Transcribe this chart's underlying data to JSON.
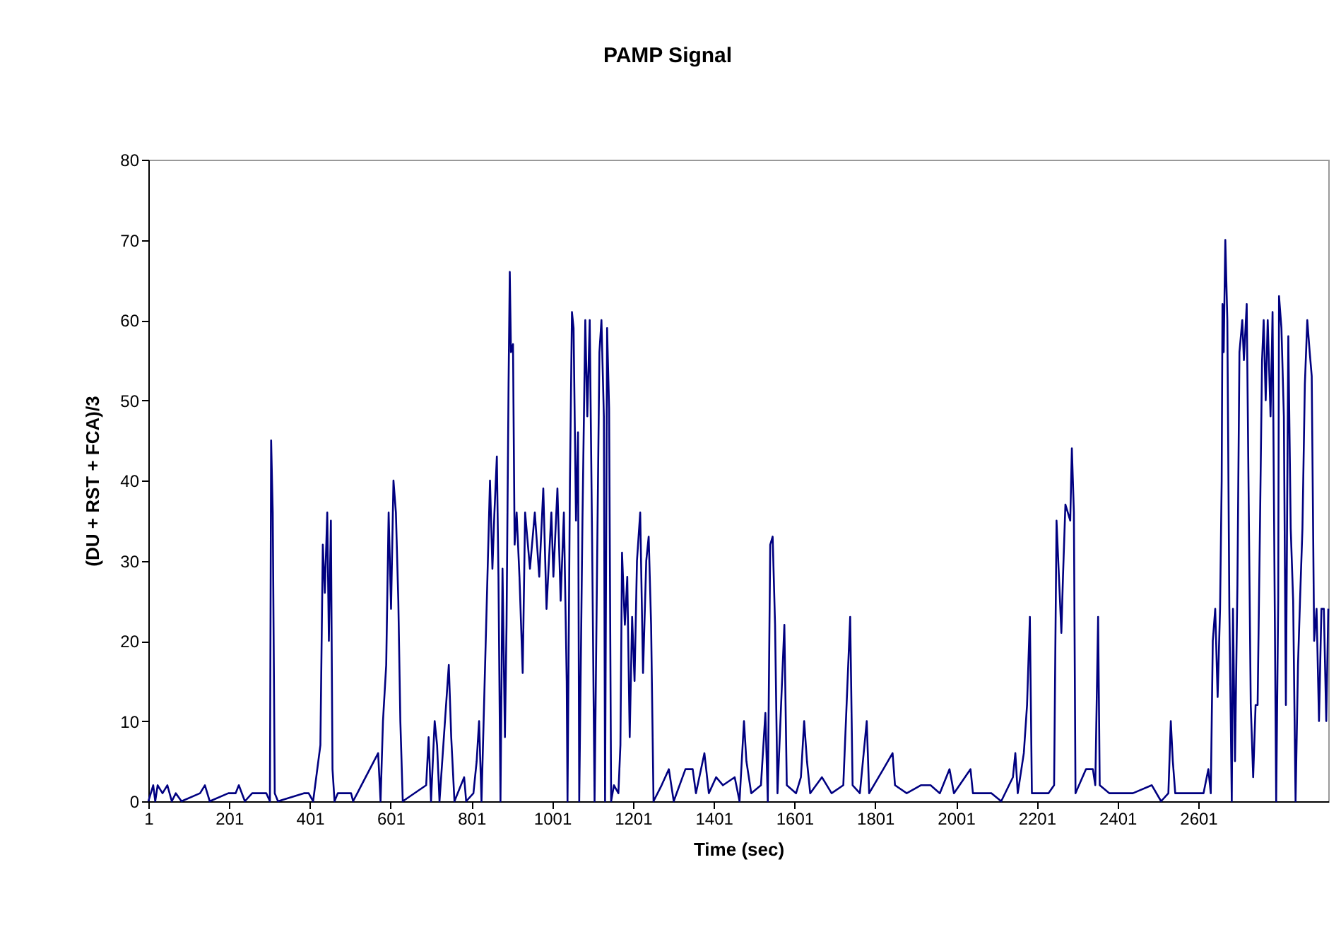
{
  "chart_data": {
    "type": "line",
    "title": "PAMP Signal",
    "xlabel": "Time (sec)",
    "ylabel": "(DU + RST + FCA)/3",
    "color": "#000080",
    "x": [
      1,
      13,
      18,
      24,
      36,
      48,
      59,
      69,
      83,
      129,
      141,
      153,
      199,
      217,
      225,
      240,
      258,
      293,
      302,
      305,
      309,
      314,
      322,
      386,
      398,
      409,
      427,
      433,
      438,
      444,
      448,
      453,
      457,
      462,
      470,
      503,
      508,
      570,
      576,
      582,
      590,
      596,
      602,
      608,
      614,
      620,
      625,
      631,
      689,
      695,
      701,
      710,
      716,
      722,
      745,
      751,
      759,
      783,
      788,
      806,
      814,
      820,
      826,
      847,
      853,
      858,
      864,
      868,
      873,
      878,
      884,
      888,
      893,
      896,
      899,
      904,
      908,
      913,
      920,
      928,
      934,
      946,
      958,
      969,
      979,
      987,
      999,
      1004,
      1014,
      1022,
      1030,
      1037,
      1039,
      1045,
      1050,
      1054,
      1060,
      1065,
      1068,
      1076,
      1083,
      1088,
      1094,
      1100,
      1106,
      1113,
      1118,
      1123,
      1129,
      1132,
      1137,
      1142,
      1147,
      1154,
      1165,
      1170,
      1174,
      1181,
      1187,
      1193,
      1199,
      1205,
      1211,
      1219,
      1226,
      1234,
      1240,
      1246,
      1252,
      1272,
      1290,
      1302,
      1331,
      1349,
      1357,
      1378,
      1389,
      1407,
      1424,
      1453,
      1465,
      1476,
      1482,
      1494,
      1518,
      1529,
      1535,
      1541,
      1547,
      1553,
      1559,
      1576,
      1582,
      1605,
      1617,
      1625,
      1632,
      1640,
      1669,
      1693,
      1722,
      1739,
      1745,
      1763,
      1780,
      1786,
      1821,
      1844,
      1850,
      1879,
      1914,
      1938,
      1961,
      1985,
      1996,
      2037,
      2043,
      2089,
      2113,
      2142,
      2148,
      2154,
      2169,
      2177,
      2184,
      2189,
      2206,
      2230,
      2244,
      2250,
      2256,
      2262,
      2266,
      2272,
      2278,
      2284,
      2288,
      2293,
      2297,
      2323,
      2340,
      2346,
      2353,
      2357,
      2381,
      2439,
      2486,
      2509,
      2527,
      2533,
      2538,
      2544,
      2567,
      2614,
      2626,
      2632,
      2637,
      2643,
      2649,
      2655,
      2659,
      2661,
      2664,
      2668,
      2673,
      2678,
      2684,
      2687,
      2692,
      2698,
      2703,
      2710,
      2714,
      2721,
      2726,
      2731,
      2737,
      2743,
      2748,
      2754,
      2759,
      2763,
      2768,
      2773,
      2780,
      2785,
      2790,
      2794,
      2799,
      2801,
      2807,
      2813,
      2818,
      2824,
      2830,
      2836,
      2842,
      2848,
      2853,
      2859,
      2865,
      2871,
      2877,
      2882,
      2888,
      2894,
      2900,
      2906,
      2912,
      2918,
      2923
    ],
    "values": [
      0,
      2,
      0,
      2,
      1,
      2,
      0,
      1,
      0,
      1,
      2,
      0,
      1,
      1,
      2,
      0,
      1,
      1,
      0,
      45,
      36,
      1,
      0,
      1,
      1,
      0,
      7,
      32,
      26,
      36,
      20,
      35,
      4,
      0,
      1,
      1,
      0,
      6,
      0,
      10,
      17,
      36,
      24,
      40,
      36,
      25,
      10,
      0,
      2,
      8,
      0,
      10,
      7,
      0,
      17,
      8,
      0,
      3,
      0,
      1,
      5,
      10,
      0,
      40,
      29,
      36,
      43,
      28,
      0,
      29,
      8,
      22,
      52,
      66,
      56,
      57,
      32,
      36,
      28,
      16,
      36,
      29,
      36,
      28,
      39,
      24,
      36,
      28,
      39,
      25,
      36,
      15,
      0,
      40,
      61,
      59,
      35,
      46,
      0,
      35,
      60,
      48,
      60,
      32,
      0,
      33,
      56,
      60,
      48,
      0,
      59,
      49,
      0,
      2,
      1,
      7,
      31,
      22,
      28,
      8,
      23,
      15,
      30,
      36,
      16,
      30,
      33,
      22,
      0,
      2,
      4,
      0,
      4,
      4,
      1,
      6,
      1,
      3,
      2,
      3,
      0,
      10,
      5,
      1,
      2,
      11,
      0,
      32,
      33,
      22,
      1,
      22,
      2,
      1,
      3,
      10,
      5,
      1,
      3,
      1,
      2,
      23,
      2,
      1,
      10,
      1,
      4,
      6,
      2,
      1,
      2,
      2,
      1,
      4,
      1,
      4,
      1,
      1,
      0,
      3,
      6,
      1,
      6,
      12,
      23,
      1,
      1,
      1,
      2,
      35,
      28,
      21,
      28,
      37,
      36,
      35,
      44,
      36,
      1,
      4,
      4,
      2,
      23,
      2,
      1,
      1,
      2,
      0,
      1,
      10,
      5,
      1,
      1,
      1,
      4,
      1,
      20,
      24,
      13,
      24,
      40,
      62,
      56,
      70,
      60,
      24,
      0,
      24,
      5,
      27,
      56,
      60,
      55,
      62,
      37,
      12,
      3,
      12,
      12,
      35,
      55,
      60,
      50,
      60,
      48,
      61,
      27,
      0,
      25,
      63,
      59,
      48,
      12,
      58,
      34,
      25,
      0,
      17,
      25,
      34,
      52,
      60,
      56,
      53,
      20,
      24,
      10,
      24,
      24,
      10,
      24
    ],
    "xlim": [
      1,
      2923
    ],
    "xticks": [
      1,
      201,
      401,
      601,
      801,
      1001,
      1201,
      1401,
      1601,
      1801,
      2001,
      2201,
      2401,
      2601
    ],
    "ylim": [
      0,
      80
    ],
    "yticks": [
      0,
      10,
      20,
      30,
      40,
      50,
      60,
      70,
      80
    ],
    "grid": false
  }
}
